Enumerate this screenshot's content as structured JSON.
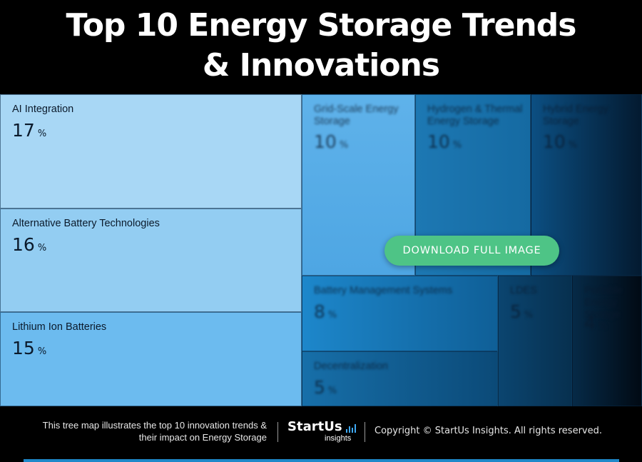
{
  "header": {
    "title_line1": "Top 10 Energy Storage Trends",
    "title_line2": "& Innovations"
  },
  "treemap": {
    "tiles": [
      {
        "label": "AI Integration",
        "value": "17",
        "unit": "%",
        "color": "#a8d7f5"
      },
      {
        "label": "Alternative Battery Technologies",
        "value": "16",
        "unit": "%",
        "color": "#93cdf2"
      },
      {
        "label": "Lithium Ion Batteries",
        "value": "15",
        "unit": "%",
        "color": "#6cbbef"
      },
      {
        "label": "Grid-Scale Energy Storage",
        "value": "10",
        "unit": "%"
      },
      {
        "label": "Hydrogen & Thermal Energy Storage",
        "value": "10",
        "unit": "%"
      },
      {
        "label": "Hybrid Energy Storage",
        "value": "10",
        "unit": "%"
      },
      {
        "label": "Battery Management Systems",
        "value": "8",
        "unit": "%"
      },
      {
        "label": "LDES",
        "value": "5",
        "unit": "%"
      },
      {
        "label": "Portable Energy Storage",
        "value": "4",
        "unit": "%"
      },
      {
        "label": "Decentralization",
        "value": "5",
        "unit": "%"
      }
    ]
  },
  "download_button": {
    "label": "DOWNLOAD FULL IMAGE",
    "color": "#4ec486"
  },
  "footer": {
    "description_line1": "This tree map illustrates the top 10 innovation trends &",
    "description_line2": "their impact on Energy Storage",
    "logo_main": "StartUs",
    "logo_sub": "insights",
    "copyright": "Copyright © StartUs Insights. All rights reserved."
  },
  "colors": {
    "accent": "#1e88c9",
    "background": "#000000"
  }
}
